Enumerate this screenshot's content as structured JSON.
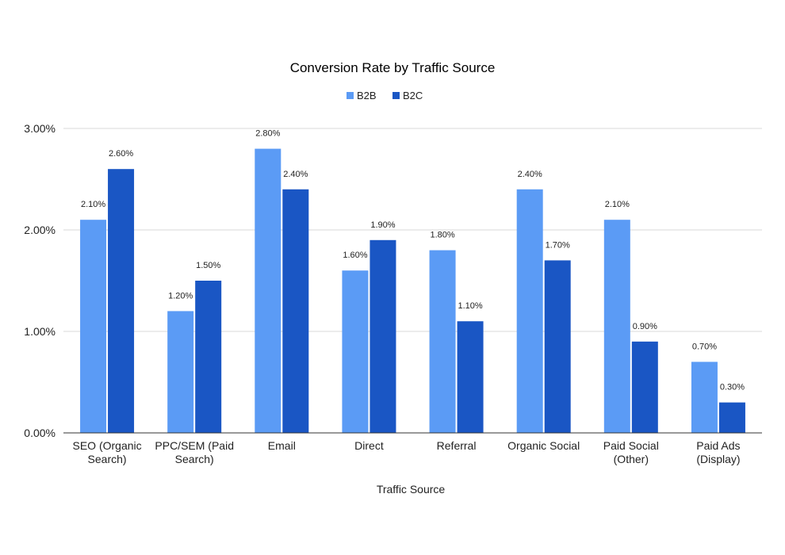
{
  "chart_data": {
    "type": "bar",
    "title": "Conversion Rate by Traffic Source",
    "xlabel": "Traffic Source",
    "ylabel": "",
    "ylim": [
      0,
      3
    ],
    "yticks": [
      {
        "value": 0,
        "label": "0.00%"
      },
      {
        "value": 1,
        "label": "1.00%"
      },
      {
        "value": 2,
        "label": "2.00%"
      },
      {
        "value": 3,
        "label": "3.00%"
      }
    ],
    "grid": true,
    "legend_position": "top-center",
    "categories": [
      [
        "SEO (Organic",
        "Search)"
      ],
      [
        "PPC/SEM (Paid",
        "Search)"
      ],
      [
        "Email"
      ],
      [
        "Direct"
      ],
      [
        "Referral"
      ],
      [
        "Organic Social"
      ],
      [
        "Paid Social",
        "(Other)"
      ],
      [
        "Paid Ads",
        "(Display)"
      ]
    ],
    "series": [
      {
        "name": "B2B",
        "color": "#5b9bf5",
        "values": [
          2.1,
          1.2,
          2.8,
          1.6,
          1.8,
          2.4,
          2.1,
          0.7
        ],
        "labels": [
          "2.10%",
          "1.20%",
          "2.80%",
          "1.60%",
          "1.80%",
          "2.40%",
          "2.10%",
          "0.70%"
        ]
      },
      {
        "name": "B2C",
        "color": "#1a56c4",
        "values": [
          2.6,
          1.5,
          2.4,
          1.9,
          1.1,
          1.7,
          0.9,
          0.3
        ],
        "labels": [
          "2.60%",
          "1.50%",
          "2.40%",
          "1.90%",
          "1.10%",
          "1.70%",
          "0.90%",
          "0.30%"
        ]
      }
    ]
  }
}
